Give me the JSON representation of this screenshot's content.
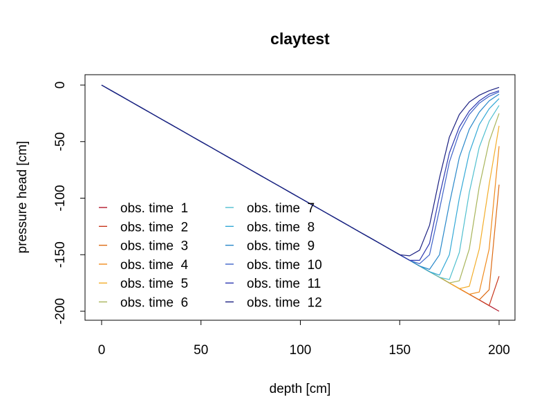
{
  "chart_data": {
    "type": "line",
    "title": "claytest",
    "xlabel": "depth [cm]",
    "ylabel": "pressure head [cm]",
    "xlim": [
      0,
      200
    ],
    "ylim": [
      -200,
      0
    ],
    "x_ticks": [
      0,
      50,
      100,
      150,
      200
    ],
    "x_tick_labels": [
      "0",
      "50",
      "100",
      "150",
      "200"
    ],
    "y_ticks": [
      0,
      -50,
      -100,
      -150,
      -200
    ],
    "y_tick_labels": [
      "0",
      "-50",
      "-100",
      "-150",
      "-200"
    ],
    "grid": false,
    "legend_position": "left",
    "legend_columns": 2,
    "x": [
      0,
      5,
      10,
      15,
      20,
      25,
      30,
      35,
      40,
      45,
      50,
      55,
      60,
      65,
      70,
      75,
      80,
      85,
      90,
      95,
      100,
      105,
      110,
      115,
      120,
      125,
      130,
      135,
      140,
      145,
      150,
      155,
      160,
      165,
      170,
      175,
      180,
      185,
      190,
      195,
      200
    ],
    "series": [
      {
        "name": "obs. time  1",
        "color": "#b2182b",
        "values": [
          0,
          -5,
          -10,
          -15,
          -20,
          -25,
          -30,
          -35,
          -40,
          -45,
          -50,
          -55,
          -60,
          -65,
          -70,
          -75,
          -80,
          -85,
          -90,
          -95,
          -100,
          -105,
          -110,
          -115,
          -120,
          -125,
          -130,
          -135,
          -140,
          -145,
          -150,
          -155,
          -160,
          -165,
          -170,
          -175,
          -180,
          -185,
          -190,
          -195,
          -200
        ]
      },
      {
        "name": "obs. time  2",
        "color": "#c8361c",
        "values": [
          0,
          -5,
          -10,
          -15,
          -20,
          -25,
          -30,
          -35,
          -40,
          -45,
          -50,
          -55,
          -60,
          -65,
          -70,
          -75,
          -80,
          -85,
          -90,
          -95,
          -100,
          -105,
          -110,
          -115,
          -120,
          -125,
          -130,
          -135,
          -140,
          -145,
          -150,
          -155,
          -160,
          -165,
          -170,
          -175,
          -180,
          -185,
          -190,
          -195,
          -169
        ]
      },
      {
        "name": "obs. time  3",
        "color": "#dd6a12",
        "values": [
          0,
          -5,
          -10,
          -15,
          -20,
          -25,
          -30,
          -35,
          -40,
          -45,
          -50,
          -55,
          -60,
          -65,
          -70,
          -75,
          -80,
          -85,
          -90,
          -95,
          -100,
          -105,
          -110,
          -115,
          -120,
          -125,
          -130,
          -135,
          -140,
          -145,
          -150,
          -155,
          -160,
          -165,
          -170,
          -175,
          -180,
          -185,
          -190,
          -181,
          -88
        ]
      },
      {
        "name": "obs. time  4",
        "color": "#f08a1c",
        "values": [
          0,
          -5,
          -10,
          -15,
          -20,
          -25,
          -30,
          -35,
          -40,
          -45,
          -50,
          -55,
          -60,
          -65,
          -70,
          -75,
          -80,
          -85,
          -90,
          -95,
          -100,
          -105,
          -110,
          -115,
          -120,
          -125,
          -130,
          -135,
          -140,
          -145,
          -150,
          -155,
          -160,
          -165,
          -170,
          -175,
          -180,
          -185,
          -183,
          -145,
          -54
        ]
      },
      {
        "name": "obs. time  5",
        "color": "#f3ad2a",
        "values": [
          0,
          -5,
          -10,
          -15,
          -20,
          -25,
          -30,
          -35,
          -40,
          -45,
          -50,
          -55,
          -60,
          -65,
          -70,
          -75,
          -80,
          -85,
          -90,
          -95,
          -100,
          -105,
          -110,
          -115,
          -120,
          -125,
          -130,
          -135,
          -140,
          -145,
          -150,
          -155,
          -160,
          -165,
          -170,
          -175,
          -180,
          -178,
          -145,
          -88,
          -36
        ]
      },
      {
        "name": "obs. time  6",
        "color": "#a8b45a",
        "values": [
          0,
          -5,
          -10,
          -15,
          -20,
          -25,
          -30,
          -35,
          -40,
          -45,
          -50,
          -55,
          -60,
          -65,
          -70,
          -75,
          -80,
          -85,
          -90,
          -95,
          -100,
          -105,
          -110,
          -115,
          -120,
          -125,
          -130,
          -135,
          -140,
          -145,
          -150,
          -155,
          -160,
          -165,
          -170,
          -175,
          -173,
          -145,
          -90,
          -50,
          -25
        ]
      },
      {
        "name": "obs. time  7",
        "color": "#4fbfcf",
        "values": [
          0,
          -5,
          -10,
          -15,
          -20,
          -25,
          -30,
          -35,
          -40,
          -45,
          -50,
          -55,
          -60,
          -65,
          -70,
          -75,
          -80,
          -85,
          -90,
          -95,
          -100,
          -105,
          -110,
          -115,
          -120,
          -125,
          -130,
          -135,
          -140,
          -145,
          -150,
          -155,
          -160,
          -165,
          -170,
          -172,
          -148,
          -95,
          -55,
          -32,
          -18
        ]
      },
      {
        "name": "obs. time  8",
        "color": "#32a8d6",
        "values": [
          0,
          -5,
          -10,
          -15,
          -20,
          -25,
          -30,
          -35,
          -40,
          -45,
          -50,
          -55,
          -60,
          -65,
          -70,
          -75,
          -80,
          -85,
          -90,
          -95,
          -100,
          -105,
          -110,
          -115,
          -120,
          -125,
          -130,
          -135,
          -140,
          -145,
          -150,
          -155,
          -160,
          -165,
          -168,
          -150,
          -100,
          -60,
          -35,
          -21,
          -12
        ]
      },
      {
        "name": "obs. time  9",
        "color": "#2787c9",
        "values": [
          0,
          -5,
          -10,
          -15,
          -20,
          -25,
          -30,
          -35,
          -40,
          -45,
          -50,
          -55,
          -60,
          -65,
          -70,
          -75,
          -80,
          -85,
          -90,
          -95,
          -100,
          -105,
          -110,
          -115,
          -120,
          -125,
          -130,
          -135,
          -140,
          -145,
          -150,
          -155,
          -160,
          -163,
          -150,
          -105,
          -64,
          -39,
          -24,
          -14,
          -8
        ]
      },
      {
        "name": "obs. time  10",
        "color": "#3d62c8",
        "values": [
          0,
          -5,
          -10,
          -15,
          -20,
          -25,
          -30,
          -35,
          -40,
          -45,
          -50,
          -55,
          -60,
          -65,
          -70,
          -75,
          -80,
          -85,
          -90,
          -95,
          -100,
          -105,
          -110,
          -115,
          -120,
          -125,
          -130,
          -135,
          -140,
          -145,
          -150,
          -155,
          -158,
          -150,
          -110,
          -68,
          -42,
          -26,
          -16,
          -10,
          -6
        ]
      },
      {
        "name": "obs. time  11",
        "color": "#2c37b0",
        "values": [
          0,
          -5,
          -10,
          -15,
          -20,
          -25,
          -30,
          -35,
          -40,
          -45,
          -50,
          -55,
          -60,
          -65,
          -70,
          -75,
          -80,
          -85,
          -90,
          -95,
          -100,
          -105,
          -110,
          -115,
          -120,
          -125,
          -130,
          -135,
          -140,
          -145,
          -150,
          -155,
          -155,
          -140,
          -98,
          -60,
          -37,
          -23,
          -14,
          -8,
          -5
        ]
      },
      {
        "name": "obs. time  12",
        "color": "#1a1f80",
        "values": [
          0,
          -5,
          -10,
          -15,
          -20,
          -25,
          -30,
          -35,
          -40,
          -45,
          -50,
          -55,
          -60,
          -65,
          -70,
          -75,
          -80,
          -85,
          -90,
          -95,
          -100,
          -105,
          -110,
          -115,
          -120,
          -125,
          -130,
          -135,
          -140,
          -145,
          -150,
          -151,
          -146,
          -124,
          -82,
          -46,
          -26,
          -15,
          -9,
          -5,
          -2
        ]
      }
    ]
  }
}
